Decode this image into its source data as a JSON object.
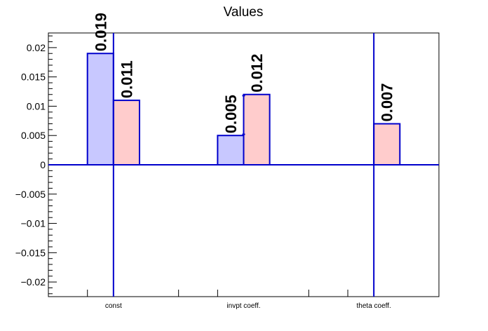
{
  "chart_data": {
    "type": "bar",
    "title": "Values",
    "xlabel": "",
    "ylabel": "",
    "ylim": [
      -0.0225,
      0.0225
    ],
    "y_ticks": [
      -0.02,
      -0.015,
      -0.01,
      -0.005,
      0,
      0.005,
      0.01,
      0.015,
      0.02
    ],
    "y_tick_labels": [
      "−0.02",
      "−0.015",
      "−0.01",
      "−0.005",
      "0",
      "0.005",
      "0.01",
      "0.015",
      "0.02"
    ],
    "categories": [
      "const",
      "invpt coeff.",
      "theta coeff."
    ],
    "series": [
      {
        "color": "#c8c8ff",
        "values": [
          0.019,
          0.005,
          null
        ],
        "labels": [
          "0.019",
          "0.005",
          null
        ]
      },
      {
        "color": "#ffcccc",
        "values": [
          0.011,
          0.012,
          0.007
        ],
        "labels": [
          "0.011",
          "0.012",
          "0.007"
        ]
      }
    ],
    "error_bars": [
      {
        "category": "const",
        "low": -0.0225,
        "high": 0.0225
      },
      {
        "category": "invpt coeff.",
        "low": 0.0052,
        "high": 0.0118
      },
      {
        "category": "theta coeff.",
        "low": -0.0225,
        "high": 0.0225
      }
    ],
    "line_color": "#0000cc",
    "grid": false,
    "legend": "none"
  }
}
